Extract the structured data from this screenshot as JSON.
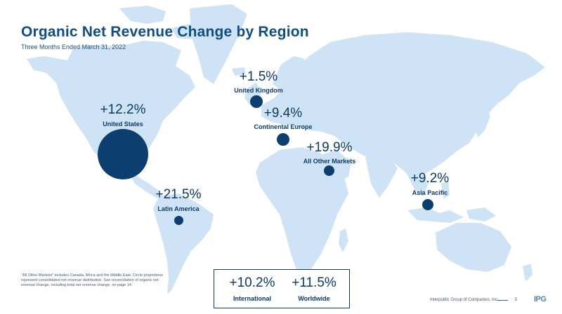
{
  "header": {
    "title": "Organic Net Revenue Change by Region",
    "subtitle": "Three Months Ended March 31, 2022"
  },
  "regions": [
    {
      "id": "united-states",
      "label": "United States",
      "value": "+12.2%"
    },
    {
      "id": "united-kingdom",
      "label": "United Kingdom",
      "value": "+1.5%"
    },
    {
      "id": "continental-europe",
      "label": "Continental Europe",
      "value": "+9.4%"
    },
    {
      "id": "all-other-markets",
      "label": "All Other Markets",
      "value": "+19.9%"
    },
    {
      "id": "asia-pacific",
      "label": "Asia Pacific",
      "value": "+9.2%"
    },
    {
      "id": "latin-america",
      "label": "Latin America",
      "value": "+21.5%"
    }
  ],
  "summary": {
    "international": {
      "value": "+10.2%",
      "label": "International"
    },
    "worldwide": {
      "value": "+11.5%",
      "label": "Worldwide"
    }
  },
  "footnote": "\"All Other Markets\" includes Canada, Africa and the Middle East. Circle proportions represent consolidated net revenue distribution. See reconciliation of organic net revenue change, including total net revenue change, on page 14.",
  "footer": {
    "company": "Interpublic Group of Companies, Inc.",
    "page": "5",
    "logo": "IPG"
  },
  "colors": {
    "land": "#cfe3f6",
    "bubble": "#0c3e6f",
    "title": "#0f4d8a",
    "text": "#0b3a6b"
  }
}
